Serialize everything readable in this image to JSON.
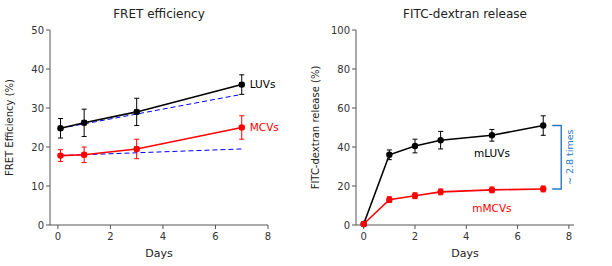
{
  "chart_data": [
    {
      "type": "line",
      "title": "FRET efficiency",
      "x_label": "Days",
      "y_label": "FRET Efficiency (%)",
      "xlim": [
        -0.3,
        8
      ],
      "ylim": [
        0,
        50
      ],
      "xticks": [
        0,
        2,
        4,
        6,
        8
      ],
      "yticks": [
        0,
        10,
        20,
        30,
        40,
        50
      ],
      "series": [
        {
          "color": "blue",
          "line_style": "dashed",
          "marker": "none",
          "x": [
            0.1,
            7
          ],
          "values": [
            24.8,
            33.5
          ]
        },
        {
          "color": "blue",
          "line_style": "dashed",
          "marker": "none",
          "x": [
            0.1,
            7
          ],
          "values": [
            17.8,
            19.5
          ]
        },
        {
          "name": "LUVs",
          "color": "black",
          "line_style": "solid",
          "marker": "circle",
          "x": [
            0.1,
            1,
            3,
            7
          ],
          "values": [
            24.8,
            26.2,
            29.0,
            36.0
          ],
          "errors": [
            2.5,
            3.5,
            3.5,
            2.5
          ],
          "x_errors": [
            0.08,
            0.08,
            0.08,
            0.08
          ]
        },
        {
          "name": "MCVs",
          "color": "red",
          "line_style": "solid",
          "marker": "circle",
          "x": [
            0.1,
            1,
            3,
            7
          ],
          "values": [
            17.8,
            18.0,
            19.5,
            25.0
          ],
          "errors": [
            1.5,
            2.0,
            2.5,
            3.0
          ],
          "x_errors": [
            0.08,
            0.08,
            0.08,
            0.08
          ]
        }
      ]
    },
    {
      "type": "line",
      "title": "FITC-dextran release",
      "x_label": "Days",
      "y_label": "FITC-dextran release (%)",
      "xlim": [
        -0.3,
        8.2
      ],
      "ylim": [
        0,
        100
      ],
      "xticks": [
        0,
        2,
        4,
        6,
        8
      ],
      "yticks": [
        0,
        20,
        40,
        60,
        80,
        100
      ],
      "series": [
        {
          "name": "mLUVs",
          "color": "black",
          "line_style": "solid",
          "marker": "circle",
          "x": [
            0,
            1,
            2,
            3,
            5,
            7
          ],
          "values": [
            0.5,
            36.0,
            40.5,
            43.5,
            46.0,
            51.0
          ],
          "errors": [
            0.3,
            2.5,
            3.5,
            4.5,
            3.0,
            5.0
          ]
        },
        {
          "name": "mMCVs",
          "color": "red",
          "line_style": "solid",
          "marker": "circle",
          "x": [
            0,
            1,
            2,
            3,
            5,
            7
          ],
          "values": [
            0.5,
            13.0,
            15.0,
            17.0,
            18.0,
            18.5
          ],
          "errors": [
            0.3,
            1.5,
            1.5,
            1.5,
            1.5,
            1.5
          ]
        }
      ],
      "annotations": [
        {
          "text": "~ 2.8 times",
          "color": "#2878c8",
          "y_range": [
            18.5,
            51.0
          ]
        }
      ]
    }
  ]
}
